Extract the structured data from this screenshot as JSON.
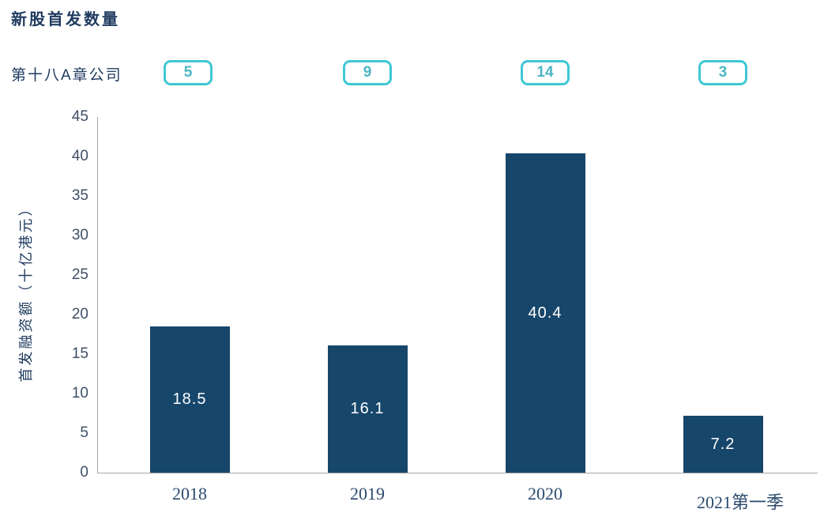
{
  "title": "新股首发数量",
  "series_label": "第十八A章公司",
  "colors": {
    "bar": "#17466b",
    "accent_cyan": "#3ec7d5",
    "badge_text": "#4db6c6",
    "heading_text": "#1f3a5f",
    "tick_text": "#3d4f66",
    "axis_line": "#a6a6a6",
    "bar_value_text": "#ffffff",
    "background": "#ffffff"
  },
  "chart_data": {
    "type": "bar",
    "title": "新股首发数量",
    "badge_series_label": "第十八A章公司",
    "categories": [
      "2018",
      "2019",
      "2020",
      "2021第一季"
    ],
    "values": [
      18.5,
      16.1,
      40.4,
      7.2
    ],
    "bar_labels": [
      "18.5",
      "16.1",
      "40.4",
      "7.2"
    ],
    "badge_counts": [
      5,
      9,
      14,
      3
    ],
    "xlabel": "",
    "ylabel": "首发融资额（十亿港元）",
    "ylim": [
      0,
      45
    ],
    "y_ticks": [
      0,
      5,
      10,
      15,
      20,
      25,
      30,
      35,
      40,
      45
    ],
    "grid": false,
    "legend": "none",
    "bar_color": "#17466b",
    "badge_border_color": "#3ec7d5"
  }
}
